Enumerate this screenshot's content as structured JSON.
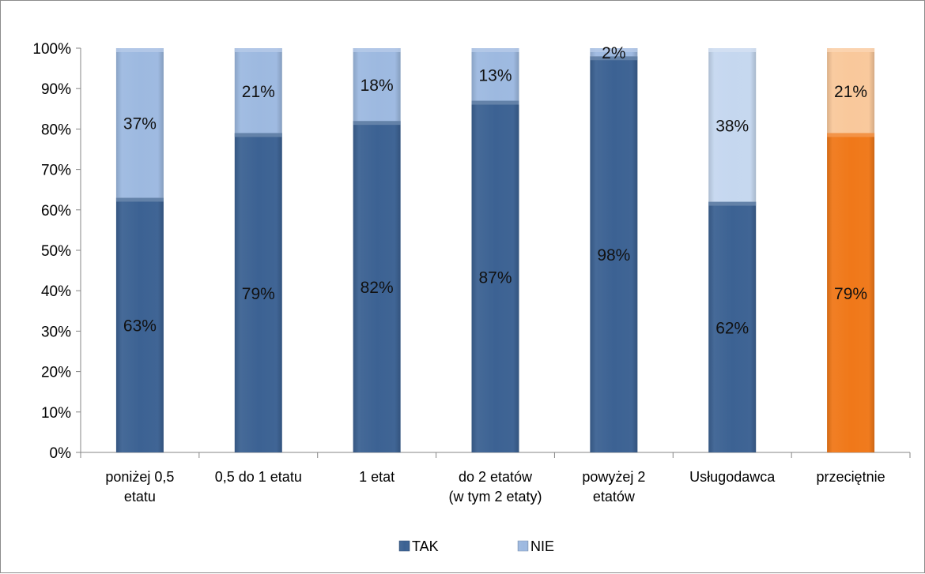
{
  "chart_data": {
    "type": "bar",
    "stacked": true,
    "percent_stacked": true,
    "categories": [
      [
        "poniżej 0,5",
        "etatu"
      ],
      [
        "0,5 do 1 etatu"
      ],
      [
        "1 etat"
      ],
      [
        "do 2 etatów",
        "(w tym 2 etaty)"
      ],
      [
        "powyżej 2",
        "etatów"
      ],
      [
        "Usługodawca"
      ],
      [
        "przeciętnie"
      ]
    ],
    "series": [
      {
        "name": "TAK",
        "values": [
          63,
          79,
          82,
          87,
          98,
          62,
          79
        ],
        "labels": [
          "63%",
          "79%",
          "82%",
          "87%",
          "98%",
          "62%",
          "79%"
        ],
        "color": "#3c6293",
        "point_colors": [
          null,
          null,
          null,
          null,
          null,
          null,
          "#f07819"
        ]
      },
      {
        "name": "NIE",
        "values": [
          37,
          21,
          18,
          13,
          2,
          38,
          21
        ],
        "labels": [
          "37%",
          "21%",
          "18%",
          "13%",
          "2%",
          "38%",
          "21%"
        ],
        "color": "#9db9e0",
        "point_colors": [
          null,
          null,
          null,
          null,
          null,
          "#c5d7ef",
          "#f9c89b"
        ]
      }
    ],
    "yticks": [
      "0%",
      "10%",
      "20%",
      "30%",
      "40%",
      "50%",
      "60%",
      "70%",
      "80%",
      "90%",
      "100%"
    ],
    "ylim": [
      0,
      100
    ],
    "legend_position": "bottom",
    "grid": false
  }
}
